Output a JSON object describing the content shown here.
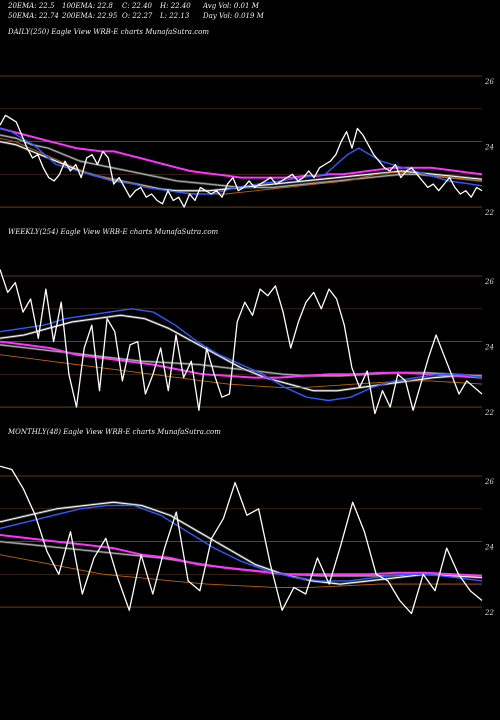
{
  "header": {
    "row1": [
      "20EMA: 22.5",
      "100EMA: 22.8",
      "C: 22.40",
      "H: 22.40",
      "Avg Vol: 0.01 M"
    ],
    "row2": [
      "50EMA: 22.74",
      "200EMA: 22.95",
      "O: 22.27",
      "L: 22.13",
      "Day Vol: 0.019 M"
    ]
  },
  "colors": {
    "background": "#000000",
    "price": "#ffffff",
    "ema_fast": "#2a5cff",
    "ema_long": "#ff33ff",
    "ema_mid": "#c06010",
    "grid": "#7a4a1a"
  },
  "chart_data": [
    {
      "type": "line",
      "label": "DAILY(250) Eagle  View  WRB-E charts MunafaSutra.com",
      "ticks": [
        "26",
        "24",
        "22"
      ],
      "tick_values": [
        26,
        24,
        22
      ],
      "ylim": [
        21.3,
        27.1
      ],
      "series": [
        {
          "role": "price",
          "values": [
            24.5,
            24.8,
            24.7,
            24.6,
            24.2,
            23.8,
            23.5,
            23.6,
            23.2,
            22.9,
            22.8,
            23.0,
            23.4,
            23.1,
            23.3,
            22.9,
            23.5,
            23.6,
            23.3,
            23.7,
            23.5,
            22.7,
            22.9,
            22.6,
            22.3,
            22.5,
            22.6,
            22.3,
            22.4,
            22.2,
            22.1,
            22.5,
            22.2,
            22.3,
            22.0,
            22.4,
            22.2,
            22.6,
            22.5,
            22.4,
            22.5,
            22.3,
            22.7,
            22.9,
            22.5,
            22.6,
            22.8,
            22.6,
            22.7,
            22.8,
            22.9,
            22.7,
            22.8,
            22.9,
            23.0,
            22.8,
            22.9,
            23.1,
            22.9,
            23.2,
            23.3,
            23.4,
            23.6,
            24.0,
            24.3,
            23.8,
            24.4,
            24.2,
            23.9,
            23.6,
            23.4,
            23.2,
            23.1,
            23.3,
            22.9,
            23.1,
            23.2,
            23.0,
            22.8,
            22.6,
            22.7,
            22.5,
            22.7,
            22.9,
            22.6,
            22.4,
            22.5,
            22.3,
            22.6,
            22.5
          ]
        },
        {
          "role": "ema_fast",
          "values": [
            24.4,
            24.3,
            24.1,
            23.9,
            23.6,
            23.3,
            23.2,
            23.1,
            23.0,
            22.9,
            22.8,
            22.75,
            22.7,
            22.6,
            22.55,
            22.5,
            22.45,
            22.4,
            22.4,
            22.4,
            22.5,
            22.6,
            22.65,
            22.7,
            22.75,
            22.8,
            22.85,
            22.9,
            22.95,
            23.0,
            23.3,
            23.6,
            23.8,
            23.6,
            23.4,
            23.3,
            23.2,
            23.1,
            23.0,
            22.9,
            22.8,
            22.75,
            22.7,
            22.65
          ]
        },
        {
          "role": "ema_long",
          "values": [
            24.4,
            24.3,
            24.2,
            24.1,
            24.0,
            23.9,
            23.8,
            23.75,
            23.7,
            23.7,
            23.6,
            23.5,
            23.4,
            23.3,
            23.2,
            23.1,
            23.05,
            23.0,
            22.95,
            22.9,
            22.9,
            22.9,
            22.9,
            22.9,
            22.95,
            22.95,
            23.0,
            23.0,
            23.05,
            23.1,
            23.15,
            23.2,
            23.2,
            23.2,
            23.2,
            23.15,
            23.1,
            23.05,
            23.0
          ]
        },
        {
          "role": "ema_mid",
          "values": [
            24.1,
            24.0,
            23.8,
            23.6,
            23.4,
            23.2,
            23.0,
            22.9,
            22.8,
            22.7,
            22.6,
            22.5,
            22.45,
            22.4,
            22.4,
            22.4,
            22.45,
            22.5,
            22.55,
            22.6,
            22.65,
            22.7,
            22.75,
            22.8,
            22.9,
            23.0,
            23.05,
            23.05,
            23.0,
            22.95,
            22.9,
            22.85,
            22.8
          ]
        },
        {
          "role": "ema_mid_b",
          "values": [
            24.0,
            23.9,
            23.7,
            23.5,
            23.3,
            23.1,
            22.95,
            22.85,
            22.75,
            22.65,
            22.55,
            22.5,
            22.5,
            22.5,
            22.55,
            22.6,
            22.65,
            22.7,
            22.75,
            22.8,
            22.85,
            22.9,
            22.95,
            23.0,
            23.05,
            23.1,
            23.05,
            23.0,
            22.95,
            22.9,
            22.85
          ]
        },
        {
          "role": "ema_brown",
          "values": [
            24.2,
            24.1,
            23.9,
            23.8,
            23.6,
            23.4,
            23.3,
            23.2,
            23.1,
            23.0,
            22.9,
            22.8,
            22.75,
            22.7,
            22.65,
            22.6,
            22.6,
            22.6,
            22.65,
            22.7,
            22.75,
            22.8,
            22.85,
            22.9,
            22.95,
            23.0,
            23.0,
            22.95,
            22.9,
            22.85,
            22.8
          ]
        }
      ]
    },
    {
      "type": "line",
      "label": "WEEKLY(254) Eagle  View  WRB-E charts MunafaSutra.com",
      "ticks": [
        "26",
        "24",
        "22"
      ],
      "tick_values": [
        26,
        24,
        22
      ],
      "ylim": [
        21.3,
        27.1
      ],
      "series": [
        {
          "role": "price",
          "values": [
            26.2,
            25.5,
            25.8,
            24.9,
            25.3,
            24.1,
            25.6,
            24.0,
            25.2,
            23.0,
            22.0,
            23.8,
            24.5,
            22.5,
            24.7,
            24.3,
            22.8,
            23.9,
            24.0,
            22.4,
            23.0,
            23.8,
            22.5,
            24.2,
            22.9,
            23.4,
            21.9,
            23.8,
            23.0,
            22.3,
            22.4,
            24.6,
            25.2,
            24.8,
            25.6,
            25.4,
            25.7,
            24.9,
            23.8,
            24.6,
            25.2,
            25.5,
            25.0,
            25.6,
            25.3,
            24.5,
            23.2,
            22.6,
            23.1,
            21.8,
            22.5,
            22.0,
            23.0,
            22.8,
            21.9,
            22.7,
            23.5,
            24.2,
            23.6,
            23.0,
            22.4,
            22.8,
            22.6,
            22.4
          ]
        },
        {
          "role": "ema_fast",
          "values": [
            24.3,
            24.4,
            24.5,
            24.7,
            24.8,
            24.9,
            25.0,
            24.9,
            24.5,
            24.0,
            23.6,
            23.3,
            23.0,
            22.6,
            22.3,
            22.2,
            22.3,
            22.6,
            22.8,
            22.9,
            23.0,
            23.0,
            22.9
          ]
        },
        {
          "role": "ema_long",
          "values": [
            24.0,
            23.9,
            23.8,
            23.6,
            23.5,
            23.4,
            23.3,
            23.15,
            23.0,
            22.95,
            22.9,
            22.9,
            22.95,
            23.0,
            23.0,
            23.05,
            23.05,
            23.0,
            22.95,
            22.9
          ]
        },
        {
          "role": "ema_mid",
          "values": [
            23.6,
            23.5,
            23.4,
            23.3,
            23.2,
            23.1,
            23.0,
            22.9,
            22.8,
            22.7,
            22.65,
            22.6,
            22.6,
            22.65,
            22.7,
            22.75,
            22.8,
            22.8,
            22.75,
            22.7
          ]
        },
        {
          "role": "ema_mid_b",
          "values": [
            24.1,
            24.2,
            24.4,
            24.6,
            24.7,
            24.8,
            24.7,
            24.4,
            24.0,
            23.6,
            23.2,
            22.9,
            22.7,
            22.5,
            22.5,
            22.6,
            22.7,
            22.8,
            22.9,
            22.95,
            22.9
          ]
        },
        {
          "role": "ema_brown",
          "values": [
            23.9,
            23.8,
            23.7,
            23.6,
            23.5,
            23.4,
            23.35,
            23.3,
            23.2,
            23.1,
            23.0,
            22.95,
            22.95,
            23.0,
            23.05,
            23.05,
            23.0,
            22.95
          ]
        }
      ]
    },
    {
      "type": "line",
      "label": "MONTHLY(48) Eagle  View  WRB-E charts MunafaSutra.com",
      "ticks": [
        "26",
        "24",
        "22"
      ],
      "tick_values": [
        26,
        24,
        22
      ],
      "ylim": [
        21.3,
        27.1
      ],
      "series": [
        {
          "role": "price",
          "values": [
            26.3,
            26.2,
            25.6,
            24.8,
            23.7,
            23.0,
            24.3,
            22.4,
            23.5,
            24.1,
            22.9,
            21.9,
            23.6,
            22.4,
            23.8,
            24.9,
            22.8,
            22.5,
            24.1,
            24.7,
            25.8,
            24.8,
            25.0,
            23.3,
            21.9,
            22.6,
            22.4,
            23.5,
            22.7,
            23.9,
            25.2,
            24.3,
            23.0,
            22.8,
            22.2,
            21.8,
            23.0,
            22.5,
            23.8,
            23.0,
            22.5,
            22.2
          ]
        },
        {
          "role": "ema_fast",
          "values": [
            24.4,
            24.6,
            24.8,
            25.0,
            25.1,
            25.1,
            24.8,
            24.3,
            23.8,
            23.4,
            23.1,
            22.9,
            22.8,
            22.8,
            22.9,
            23.0,
            23.0,
            22.9,
            22.8
          ]
        },
        {
          "role": "ema_long",
          "values": [
            24.2,
            24.1,
            24.0,
            23.9,
            23.8,
            23.6,
            23.5,
            23.3,
            23.2,
            23.1,
            23.0,
            23.0,
            23.0,
            23.0,
            23.05,
            23.05,
            23.0,
            22.95
          ]
        },
        {
          "role": "ema_mid",
          "values": [
            23.6,
            23.4,
            23.2,
            23.0,
            22.9,
            22.8,
            22.7,
            22.65,
            22.6,
            22.6,
            22.65,
            22.7,
            22.7,
            22.7,
            22.7
          ]
        },
        {
          "role": "ema_mid_b",
          "values": [
            24.6,
            24.8,
            25.0,
            25.1,
            25.2,
            25.1,
            24.8,
            24.3,
            23.8,
            23.3,
            23.0,
            22.8,
            22.7,
            22.8,
            22.9,
            23.0,
            22.95,
            22.9
          ]
        },
        {
          "role": "ema_brown",
          "values": [
            24.0,
            23.9,
            23.8,
            23.7,
            23.6,
            23.5,
            23.35,
            23.2,
            23.1,
            23.0,
            22.95,
            22.95,
            22.95,
            23.0,
            23.0,
            22.95
          ]
        }
      ]
    }
  ]
}
